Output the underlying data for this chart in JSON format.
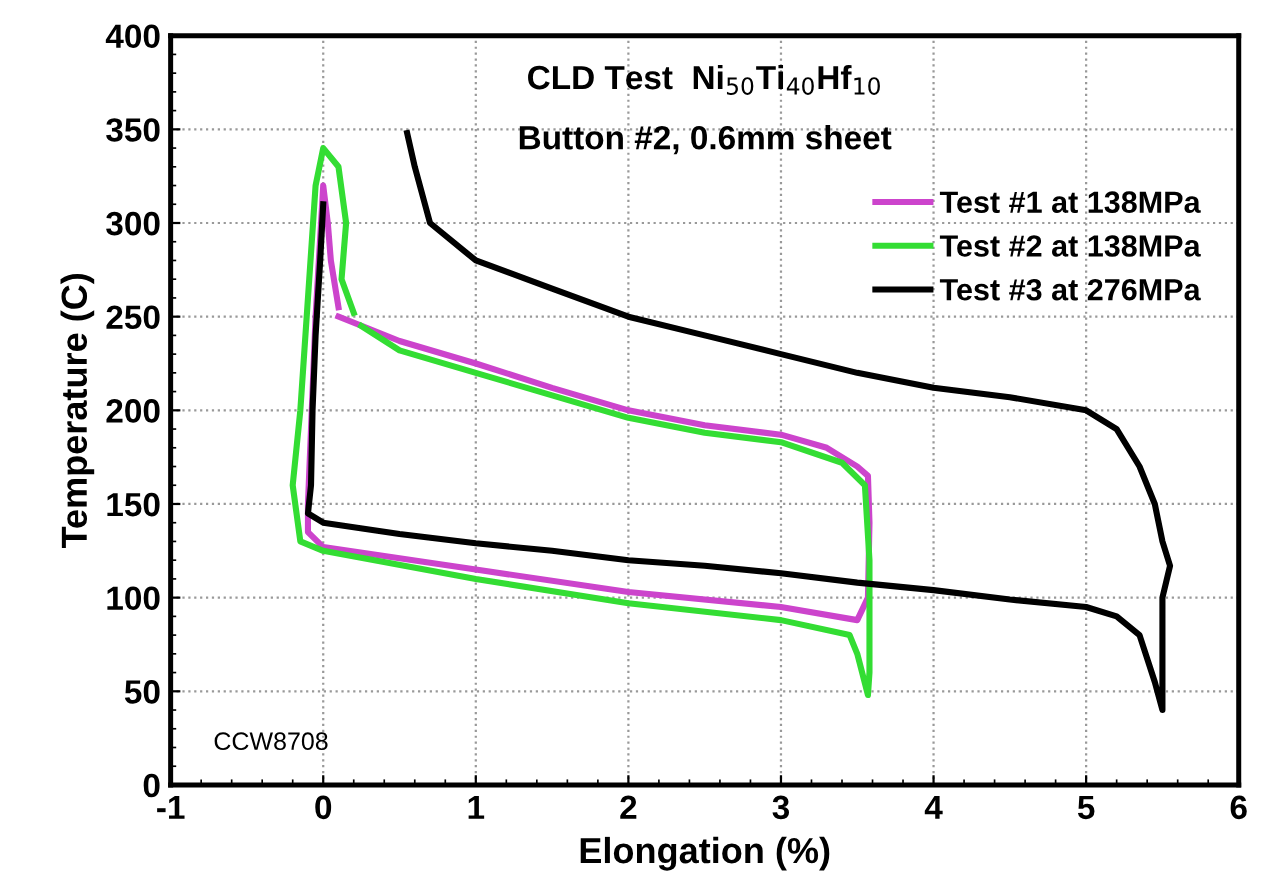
{
  "chart_data": {
    "type": "line",
    "title": "CLD Test  Ni$_{50}$Ti$_{40}$Hf$_{10}$",
    "subtitle": "Button #2, 0.6mm sheet",
    "xlabel": "Elongation (%)",
    "ylabel": "Temperature (C)",
    "xlim": [
      -1,
      6
    ],
    "xticks": [
      -1,
      0,
      1,
      2,
      3,
      4,
      5,
      6
    ],
    "ylim": [
      0,
      400
    ],
    "yticks": [
      0,
      50,
      100,
      150,
      200,
      250,
      300,
      350,
      400
    ],
    "grid": true,
    "legend": "top right",
    "marker": "none",
    "line_style": "solid",
    "annotations": [
      "CCW8708"
    ],
    "series": [
      {
        "name": "Test #1 at 138MPa",
        "color": "#cc44cc",
        "x": [
          0.1,
          0.5,
          1,
          1.5,
          2,
          2.5,
          3,
          3.3,
          3.5,
          3.57,
          3.58,
          3.57,
          3.5,
          3,
          2,
          1,
          0,
          -0.1,
          -0.1,
          -0.05,
          0,
          0.03,
          0.05,
          0.1
        ],
        "values": [
          250,
          237,
          225,
          212,
          200,
          192,
          187,
          180,
          170,
          165,
          140,
          100,
          88,
          95,
          103,
          115,
          127,
          135,
          150,
          250,
          320,
          300,
          280,
          255
        ]
      },
      {
        "name": "Test #2 at 138MPa",
        "color": "#33dd33",
        "x": [
          0.25,
          0.5,
          1,
          1.5,
          2,
          2.5,
          3,
          3.4,
          3.55,
          3.58,
          3.58,
          3.57,
          3.5,
          3.45,
          3,
          2,
          1,
          0,
          -0.15,
          -0.2,
          -0.15,
          -0.1,
          -0.05,
          0,
          0.1,
          0.15,
          0.12,
          0.2
        ],
        "values": [
          245,
          232,
          220,
          208,
          196,
          188,
          183,
          172,
          160,
          120,
          60,
          48,
          70,
          80,
          88,
          97,
          110,
          125,
          130,
          160,
          200,
          260,
          320,
          340,
          330,
          300,
          270,
          252
        ]
      },
      {
        "name": "Test #3 at 276MPa",
        "color": "#000000",
        "x": [
          0.55,
          0.6,
          0.7,
          1.0,
          1.5,
          2,
          2.5,
          3,
          3.5,
          4,
          4.5,
          5,
          5.2,
          5.35,
          5.45,
          5.5,
          5.55,
          5.5,
          5.5,
          5.5,
          5.45,
          5.35,
          5.2,
          5,
          4.5,
          4,
          3.5,
          3,
          2.5,
          2,
          1.5,
          1,
          0.5,
          0,
          -0.1,
          -0.08,
          -0.07,
          -0.05,
          -0.02,
          0.0
        ],
        "values": [
          348,
          330,
          300,
          280,
          265,
          250,
          240,
          230,
          220,
          212,
          207,
          200,
          190,
          170,
          150,
          130,
          117,
          100,
          60,
          40,
          55,
          80,
          90,
          95,
          99,
          104,
          108,
          113,
          117,
          120,
          125,
          129,
          134,
          140,
          145,
          160,
          200,
          240,
          280,
          310
        ]
      }
    ]
  }
}
